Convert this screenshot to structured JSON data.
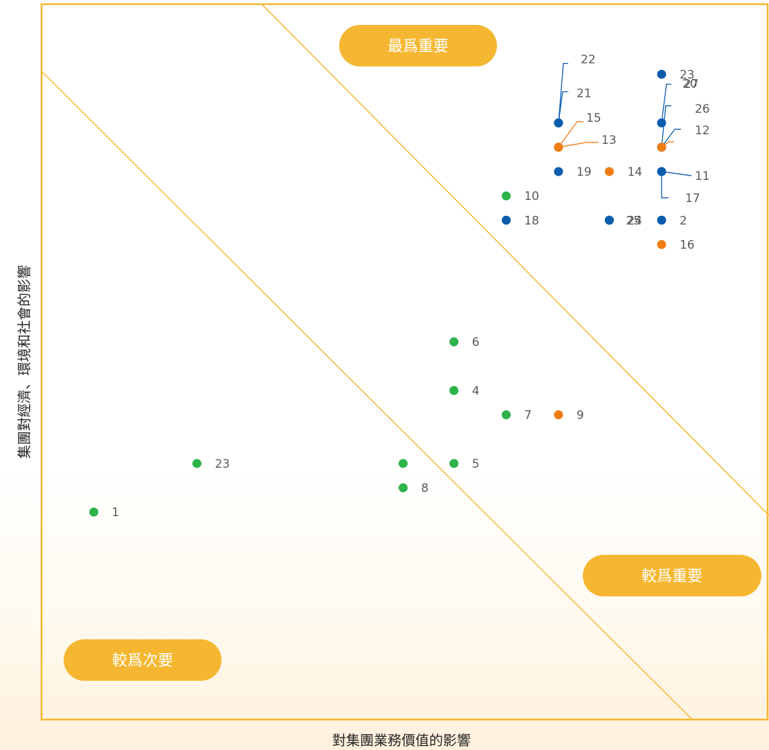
{
  "chart_data": {
    "type": "scatter",
    "xlabel": "對集團業務價值的影響",
    "ylabel": "集團對經濟、環境和社會的影響",
    "xlim": [
      0,
      5
    ],
    "ylim": [
      0,
      5
    ],
    "grid": false,
    "zones": [
      {
        "label": "最爲重要",
        "position": "top-center"
      },
      {
        "label": "較爲重要",
        "position": "right-middle"
      },
      {
        "label": "較爲次要",
        "position": "bottom-left"
      }
    ],
    "colors": {
      "green": "#2db34a",
      "blue": "#0b5cad",
      "orange": "#ef7d13",
      "frame": "#f5b731",
      "zone_fill": "#f5b731"
    },
    "points": [
      {
        "label": "1",
        "x": 0.36,
        "y": 1.45,
        "color": "green"
      },
      {
        "label": "23",
        "x": 1.07,
        "y": 1.79,
        "color": "green"
      },
      {
        "label": "",
        "x": 2.49,
        "y": 1.79,
        "color": "green"
      },
      {
        "label": "8",
        "x": 2.49,
        "y": 1.62,
        "color": "green"
      },
      {
        "label": "5",
        "x": 2.84,
        "y": 1.79,
        "color": "green"
      },
      {
        "label": "4",
        "x": 2.84,
        "y": 2.3,
        "color": "green"
      },
      {
        "label": "6",
        "x": 2.84,
        "y": 2.64,
        "color": "green"
      },
      {
        "label": "7",
        "x": 3.2,
        "y": 2.13,
        "color": "green"
      },
      {
        "label": "9",
        "x": 3.56,
        "y": 2.13,
        "color": "orange"
      },
      {
        "label": "10",
        "x": 3.2,
        "y": 3.66,
        "color": "green"
      },
      {
        "label": "18",
        "x": 3.2,
        "y": 3.49,
        "color": "blue"
      },
      {
        "label": "19",
        "x": 3.56,
        "y": 3.83,
        "color": "blue"
      },
      {
        "label": "14",
        "x": 3.91,
        "y": 3.83,
        "color": "orange"
      },
      {
        "label": "24",
        "x": 3.91,
        "y": 3.49,
        "color": "blue"
      },
      {
        "label": "25",
        "x": 3.91,
        "y": 3.49,
        "color": "blue"
      },
      {
        "label": "2",
        "x": 4.27,
        "y": 3.49,
        "color": "blue"
      },
      {
        "label": "16",
        "x": 4.27,
        "y": 3.32,
        "color": "orange"
      },
      {
        "label": "23",
        "x": 4.27,
        "y": 4.51,
        "color": "blue"
      },
      {
        "label": "22",
        "x": 3.56,
        "y": 4.17,
        "color": "blue"
      },
      {
        "label": "21",
        "x": 3.56,
        "y": 4.17,
        "color": "blue"
      },
      {
        "label": "15",
        "x": 3.56,
        "y": 4.0,
        "color": "orange"
      },
      {
        "label": "13",
        "x": 3.56,
        "y": 4.0,
        "color": "orange"
      },
      {
        "label": "20",
        "x": 4.27,
        "y": 4.17,
        "color": "blue"
      },
      {
        "label": "27",
        "x": 4.27,
        "y": 4.0,
        "color": "blue"
      },
      {
        "label": "26",
        "x": 4.27,
        "y": 4.0,
        "color": "blue"
      },
      {
        "label": "12",
        "x": 4.27,
        "y": 4.0,
        "color": "orange"
      },
      {
        "label": "11",
        "x": 4.27,
        "y": 3.83,
        "color": "blue"
      },
      {
        "label": "17",
        "x": 4.27,
        "y": 3.83,
        "color": "blue"
      }
    ]
  }
}
